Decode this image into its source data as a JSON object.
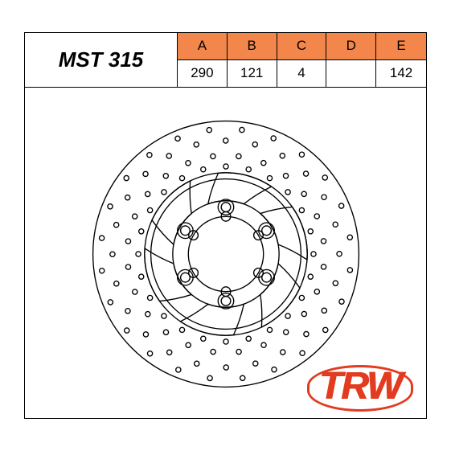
{
  "product": {
    "code": "MST 315"
  },
  "spec_table": {
    "columns": [
      "A",
      "B",
      "C",
      "D",
      "E"
    ],
    "values": [
      "290",
      "121",
      "4",
      "",
      "142"
    ],
    "header_bg": "#f3874b",
    "header_fg": "#000000"
  },
  "logo": {
    "text": "TRW",
    "color": "#e23b1f"
  },
  "disc": {
    "type": "brake-rotor-diagram",
    "stroke": "#000000",
    "stroke_width": 1.4,
    "outer_r": 170,
    "band_outer_r": 170,
    "band_inner_r": 104,
    "step_r": 96,
    "hub_outer_r": 68,
    "hub_inner_r": 48,
    "bolt_circle_r": 60,
    "bolt_hole_r": 6,
    "bolt_hole_count": 6,
    "notch_r": 6,
    "notch_ring_r": 48,
    "notch_count": 6,
    "spoke_count": 6,
    "spoke_width_deg": 30,
    "hole_rows": [
      {
        "r": 112,
        "n": 24
      },
      {
        "r": 126,
        "n": 24
      },
      {
        "r": 145,
        "n": 24
      },
      {
        "r": 160,
        "n": 24
      }
    ],
    "hole_r": 3.2
  },
  "colors": {
    "page_bg": "#ffffff",
    "border": "#000000"
  }
}
